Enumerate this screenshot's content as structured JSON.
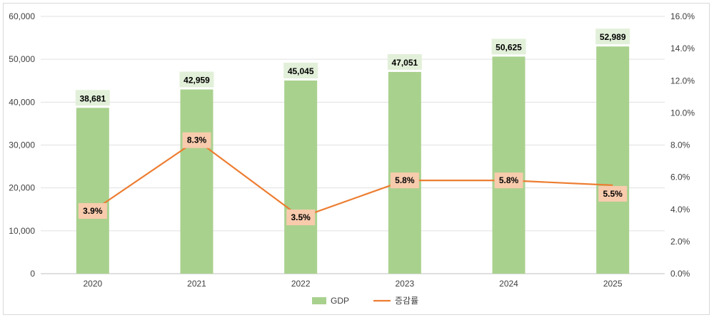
{
  "chart_data": {
    "type": "bar",
    "categories": [
      "2020",
      "2021",
      "2022",
      "2023",
      "2024",
      "2025"
    ],
    "series": [
      {
        "name": "GDP",
        "type": "bar",
        "axis": "left",
        "values": [
          38681,
          42959,
          45045,
          47051,
          50625,
          52989
        ],
        "labels": [
          "38,681",
          "42,959",
          "45,045",
          "47,051",
          "50,625",
          "52,989"
        ]
      },
      {
        "name": "증감률",
        "type": "line",
        "axis": "right",
        "values": [
          3.9,
          8.3,
          3.5,
          5.8,
          5.8,
          5.5
        ],
        "labels": [
          "3.9%",
          "8.3%",
          "3.5%",
          "5.8%",
          "5.8%",
          "5.5%"
        ]
      }
    ],
    "y_left": {
      "ylim": [
        0,
        60000
      ],
      "ticks": [
        "0",
        "10,000",
        "20,000",
        "30,000",
        "40,000",
        "50,000",
        "60,000"
      ]
    },
    "y_right": {
      "ylim": [
        0,
        16
      ],
      "ticks": [
        "0.0%",
        "2.0%",
        "4.0%",
        "6.0%",
        "8.0%",
        "10.0%",
        "12.0%",
        "14.0%",
        "16.0%"
      ]
    },
    "grid": true,
    "legend": "bottom",
    "colors": {
      "bar": "#a9d18e",
      "bar_label_bg": "#e2f0d9",
      "line": "#ed7d31",
      "line_label_bg": "#f8cbad",
      "grid": "#e0e0e0"
    }
  }
}
